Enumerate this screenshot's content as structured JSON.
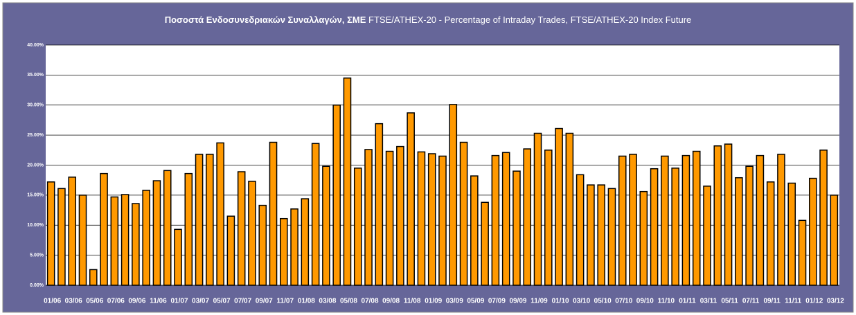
{
  "chart_data": {
    "type": "bar",
    "title_bold": "Ποσοστά Ενδοσυνεδριακών Συναλλαγών, ΣΜΕ",
    "title": "FTSE/ATHEX-20 - Percentage of Intraday Trades, FTSE/ATHEX-20 Index Future",
    "categories": [
      "01/06",
      null,
      "03/06",
      null,
      "05/06",
      null,
      "07/06",
      null,
      "09/06",
      null,
      "11/06",
      null,
      "01/07",
      null,
      "03/07",
      null,
      "05/07",
      null,
      "07/07",
      null,
      "09/07",
      null,
      "11/07",
      null,
      "01/08",
      null,
      "03/08",
      null,
      "05/08",
      null,
      "07/08",
      null,
      "09/08",
      null,
      "11/08",
      null,
      "01/09",
      null,
      "03/09",
      null,
      "05/09",
      null,
      "07/09",
      null,
      "09/09",
      null,
      "11/09",
      null,
      "01/10",
      null,
      "03/10",
      null,
      "05/10",
      null,
      "07/10",
      null,
      "09/10",
      null,
      "11/10",
      null,
      "01/11",
      null,
      "03/11",
      null,
      "05/11",
      null,
      "07/11",
      null,
      "09/11",
      null,
      "11/11",
      null,
      "01/12",
      null,
      "03/12"
    ],
    "values": [
      17.2,
      16.1,
      18.0,
      15.0,
      2.6,
      18.6,
      14.7,
      15.1,
      13.6,
      15.8,
      17.4,
      19.1,
      9.3,
      18.6,
      21.8,
      21.8,
      23.7,
      11.5,
      18.9,
      17.3,
      13.3,
      23.8,
      11.1,
      12.7,
      14.4,
      23.6,
      19.8,
      30.0,
      34.5,
      19.5,
      22.6,
      26.9,
      22.3,
      23.1,
      28.7,
      22.2,
      21.9,
      21.5,
      30.1,
      23.8,
      18.2,
      13.8,
      21.6,
      22.1,
      19.0,
      22.7,
      25.3,
      22.5,
      26.1,
      25.3,
      18.4,
      16.7,
      16.7,
      16.1,
      21.5,
      21.8,
      15.6,
      19.4,
      21.5,
      19.5,
      21.6,
      22.3,
      16.5,
      23.2,
      23.5,
      17.9,
      19.8,
      21.6,
      17.2,
      21.8,
      17.0,
      10.8,
      17.8,
      22.5,
      15.0
    ],
    "color": "#ff9900",
    "ylim": [
      0,
      40
    ],
    "yticks": [
      {
        "value": 0,
        "label": "0.00%"
      },
      {
        "value": 5,
        "label": "5.00%"
      },
      {
        "value": 10,
        "label": "10.00%"
      },
      {
        "value": 15,
        "label": "15.00%"
      },
      {
        "value": 20,
        "label": "20.00%"
      },
      {
        "value": 25,
        "label": "25.00%"
      },
      {
        "value": 30,
        "label": "30.00%"
      },
      {
        "value": 35,
        "label": "35.00%"
      },
      {
        "value": 40,
        "label": "40.00%"
      }
    ],
    "grid": true
  }
}
